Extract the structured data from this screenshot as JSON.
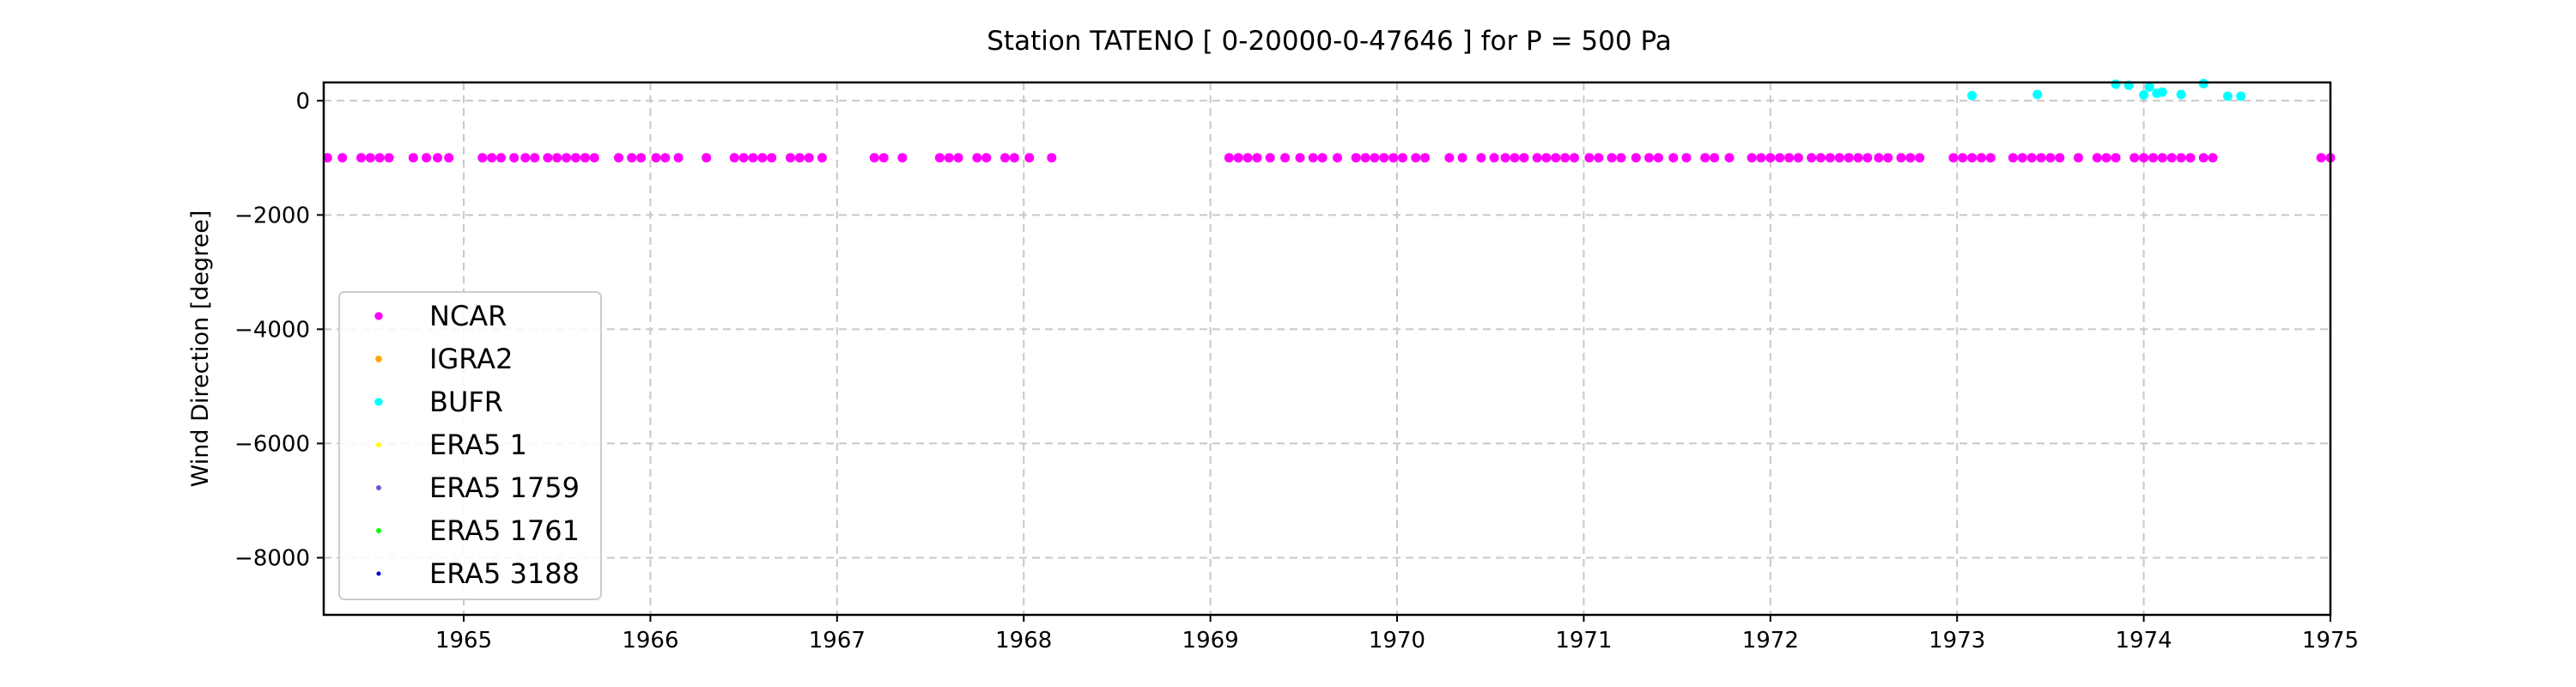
{
  "chart_data": {
    "type": "scatter",
    "title": "Station  TATENO [ 0-20000-0-47646 ]  for P = 500 Pa",
    "xlabel": "",
    "ylabel": "Wind Direction [degree]",
    "xlim": [
      1964.25,
      1975.0
    ],
    "ylim": [
      -9000,
      320
    ],
    "x_ticks": [
      1965,
      1966,
      1967,
      1968,
      1969,
      1970,
      1971,
      1972,
      1973,
      1974,
      1975
    ],
    "y_ticks": [
      0,
      -2000,
      -4000,
      -6000,
      -8000
    ],
    "grid": true,
    "legend_position": "lower-left",
    "series": [
      {
        "name": "NCAR",
        "color": "#ff00ff",
        "marker_size": "large",
        "x": [
          1964.27,
          1964.35,
          1964.45,
          1964.5,
          1964.55,
          1964.6,
          1964.73,
          1964.8,
          1964.86,
          1964.92,
          1965.1,
          1965.15,
          1965.2,
          1965.27,
          1965.33,
          1965.38,
          1965.45,
          1965.5,
          1965.55,
          1965.6,
          1965.65,
          1965.7,
          1965.83,
          1965.9,
          1965.95,
          1966.03,
          1966.08,
          1966.15,
          1966.3,
          1966.45,
          1966.5,
          1966.55,
          1966.6,
          1966.65,
          1966.75,
          1966.8,
          1966.85,
          1966.92,
          1967.2,
          1967.25,
          1967.35,
          1967.55,
          1967.6,
          1967.65,
          1967.75,
          1967.8,
          1967.9,
          1967.95,
          1968.03,
          1968.15,
          1969.1,
          1969.15,
          1969.2,
          1969.25,
          1969.32,
          1969.4,
          1969.48,
          1969.55,
          1969.6,
          1969.68,
          1969.78,
          1969.83,
          1969.88,
          1969.93,
          1969.98,
          1970.03,
          1970.1,
          1970.15,
          1970.28,
          1970.35,
          1970.45,
          1970.52,
          1970.58,
          1970.63,
          1970.68,
          1970.75,
          1970.8,
          1970.85,
          1970.9,
          1970.95,
          1971.03,
          1971.08,
          1971.15,
          1971.2,
          1971.28,
          1971.35,
          1971.4,
          1971.48,
          1971.55,
          1971.65,
          1971.7,
          1971.78,
          1971.9,
          1971.95,
          1972.0,
          1972.05,
          1972.1,
          1972.15,
          1972.22,
          1972.27,
          1972.32,
          1972.37,
          1972.42,
          1972.47,
          1972.52,
          1972.58,
          1972.63,
          1972.7,
          1972.75,
          1972.8,
          1972.98,
          1973.03,
          1973.08,
          1973.13,
          1973.18,
          1973.3,
          1973.35,
          1973.4,
          1973.45,
          1973.5,
          1973.55,
          1973.65,
          1973.75,
          1973.8,
          1973.85,
          1973.95,
          1974.0,
          1974.05,
          1974.1,
          1974.15,
          1974.2,
          1974.25,
          1974.32,
          1974.37,
          1974.95,
          1975.0
        ],
        "y_value": -999
      },
      {
        "name": "IGRA2",
        "color": "#ffa500",
        "marker_size": "medium",
        "x": [],
        "y": []
      },
      {
        "name": "BUFR",
        "color": "#00ffff",
        "marker_size": "large",
        "x": [
          1973.08,
          1973.43,
          1973.85,
          1973.92,
          1974.0,
          1974.03,
          1974.07,
          1974.1,
          1974.2,
          1974.32,
          1974.45,
          1974.52
        ],
        "y": [
          90,
          110,
          290,
          270,
          100,
          240,
          130,
          150,
          110,
          300,
          80,
          80
        ]
      },
      {
        "name": "ERA5 1",
        "color": "#ffff00",
        "marker_size": "small",
        "x": [],
        "y": []
      },
      {
        "name": "ERA5 1759",
        "color": "#6a5acd",
        "marker_size": "small",
        "x": [],
        "y": []
      },
      {
        "name": "ERA5 1761",
        "color": "#00ff00",
        "marker_size": "small",
        "x": [],
        "y": []
      },
      {
        "name": "ERA5 3188",
        "color": "#0000cd",
        "marker_size": "tiny",
        "x": [],
        "y": []
      }
    ]
  }
}
